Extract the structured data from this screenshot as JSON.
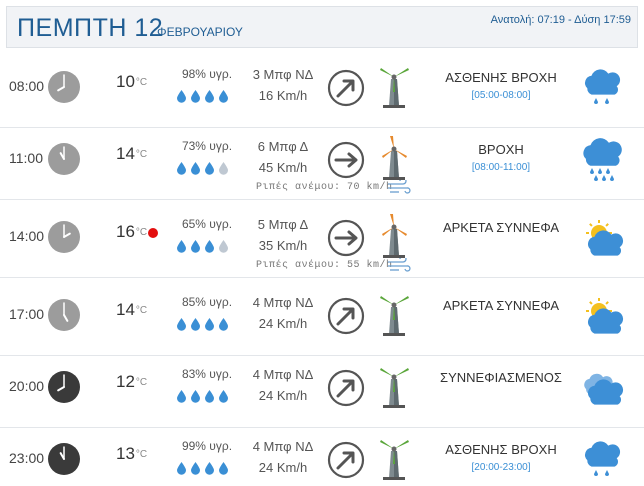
{
  "header": {
    "day": "ΠΕΜΠΤΗ 12",
    "month": "ΦΕΒΡΟΥΑΡΙΟΥ",
    "sun_info": "Ανατολή: 07:19 - Δύση 17:59"
  },
  "rows": [
    {
      "time": "08:00",
      "clock": "light",
      "temp": "10",
      "hot": false,
      "humidity": "98% υγρ.",
      "drops_filled": 4,
      "wind_bf": "3 Μπφ ΝΔ",
      "wind_kmh": "16 Km/h",
      "arrow": "ne",
      "turbine": "green",
      "gust": "",
      "condition": "ΑΣΘΕΝΗΣ ΒΡΟΧΗ",
      "cond_range": "[05:00-08:00]",
      "icon": "light-rain-icon"
    },
    {
      "time": "11:00",
      "clock": "light",
      "temp": "14",
      "hot": false,
      "humidity": "73% υγρ.",
      "drops_filled": 3,
      "wind_bf": "6 Μπφ Δ",
      "wind_kmh": "45 Km/h",
      "arrow": "e",
      "turbine": "orange",
      "gust": "Ριπές ανέμου: 70 km/h",
      "condition": "ΒΡΟΧΗ",
      "cond_range": "[08:00-11:00]",
      "icon": "rain-icon"
    },
    {
      "time": "14:00",
      "clock": "light",
      "temp": "16",
      "hot": true,
      "humidity": "65% υγρ.",
      "drops_filled": 3,
      "wind_bf": "5 Μπφ Δ",
      "wind_kmh": "35 Km/h",
      "arrow": "e",
      "turbine": "orange",
      "gust": "Ριπές ανέμου: 55 km/h",
      "condition": "ΑΡΚΕΤΑ ΣΥΝΝΕΦΑ",
      "cond_range": "",
      "icon": "partly-cloudy-icon"
    },
    {
      "time": "17:00",
      "clock": "light",
      "temp": "14",
      "hot": false,
      "humidity": "85% υγρ.",
      "drops_filled": 4,
      "wind_bf": "4 Μπφ ΝΔ",
      "wind_kmh": "24 Km/h",
      "arrow": "ne",
      "turbine": "green",
      "gust": "",
      "condition": "ΑΡΚΕΤΑ ΣΥΝΝΕΦΑ",
      "cond_range": "",
      "icon": "partly-cloudy-icon"
    },
    {
      "time": "20:00",
      "clock": "dark",
      "temp": "12",
      "hot": false,
      "humidity": "83% υγρ.",
      "drops_filled": 4,
      "wind_bf": "4 Μπφ ΝΔ",
      "wind_kmh": "24 Km/h",
      "arrow": "ne",
      "turbine": "green",
      "gust": "",
      "condition": "ΣΥΝΝΕΦΙΑΣΜΕΝΟΣ",
      "cond_range": "",
      "icon": "cloudy-icon"
    },
    {
      "time": "23:00",
      "clock": "dark",
      "temp": "13",
      "hot": false,
      "humidity": "99% υγρ.",
      "drops_filled": 4,
      "wind_bf": "4 Μπφ ΝΔ",
      "wind_kmh": "24 Km/h",
      "arrow": "ne",
      "turbine": "green",
      "gust": "",
      "condition": "ΑΣΘΕΝΗΣ ΒΡΟΧΗ",
      "cond_range": "[20:00-23:00]",
      "icon": "light-rain-icon"
    }
  ],
  "colors": {
    "accent": "#1f5d93",
    "drop_filled": "#3a8fd5",
    "drop_empty": "#bfc8d2",
    "hot_dot": "#e30e0e",
    "turbine_green": "#5aa63a",
    "turbine_orange": "#e68a2e"
  }
}
